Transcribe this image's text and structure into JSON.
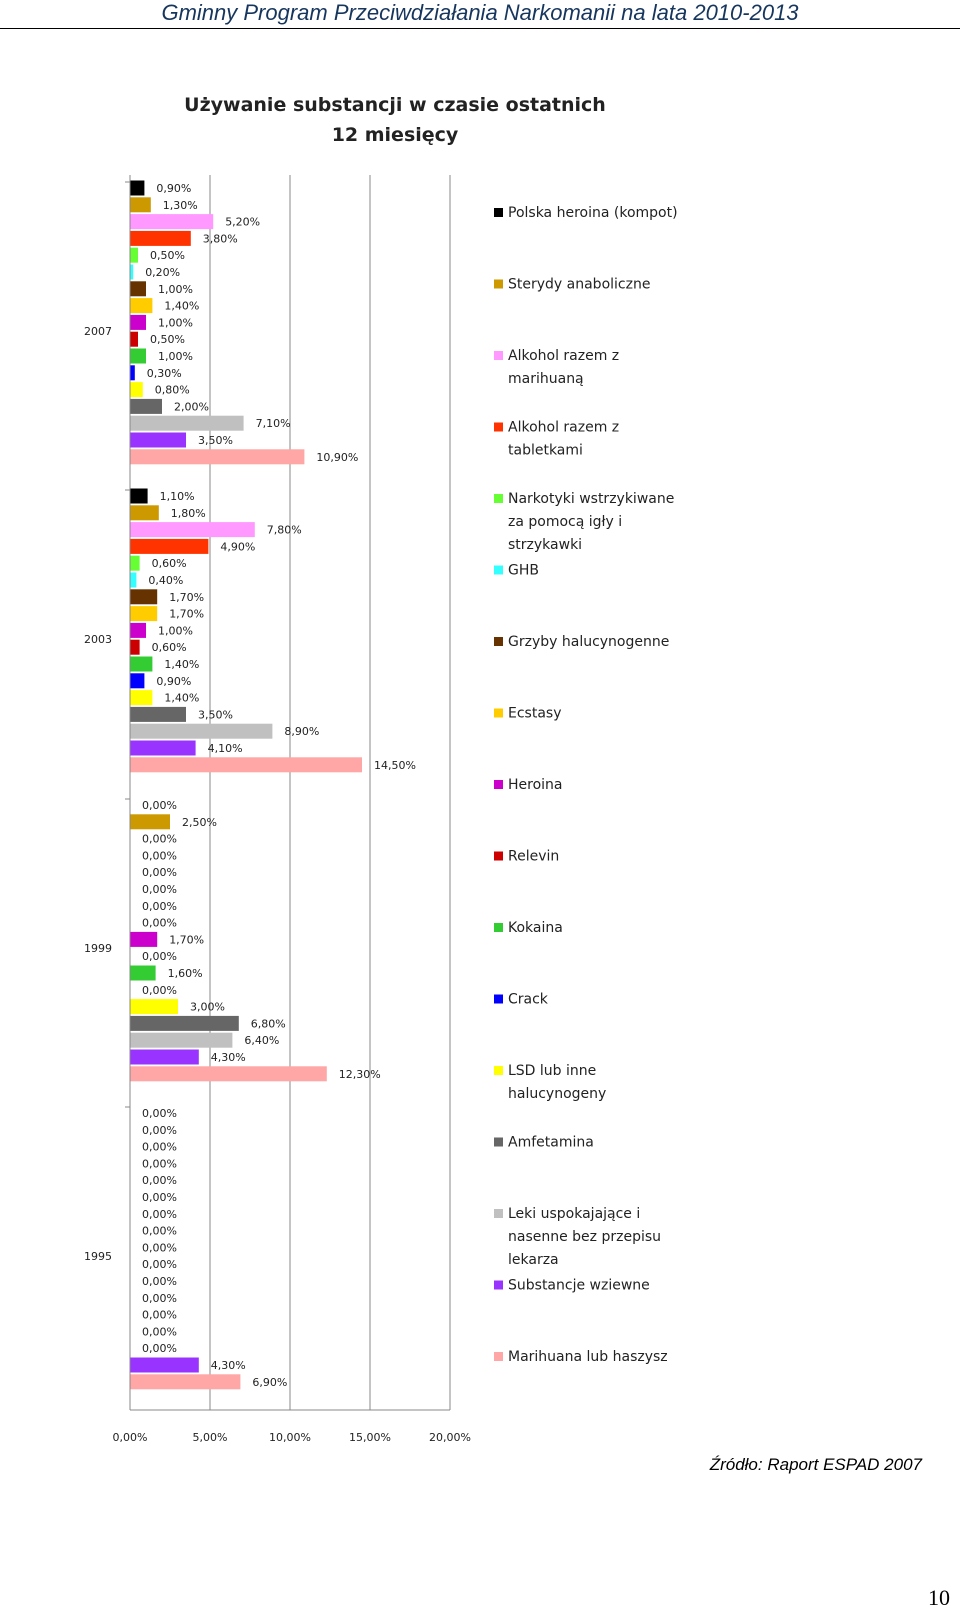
{
  "header": {
    "title": "Gminny Program Przeciwdziałania Narkomanii na lata 2010-2013"
  },
  "footer": {
    "source": "Źródło: Raport ESPAD 2007",
    "page_number": "10"
  },
  "chart_data": {
    "type": "bar",
    "orientation": "horizontal",
    "title": "Używanie substancji w czasie ostatnich 12 miesięcy",
    "title_lines": [
      "Używanie substancji w czasie ostatnich",
      "12 miesięcy"
    ],
    "xlim": [
      0,
      20
    ],
    "x_ticks": [
      "0,00%",
      "5,00%",
      "10,00%",
      "15,00%",
      "20,00%"
    ],
    "groups": [
      "2007",
      "2003",
      "1999",
      "1995"
    ],
    "series": [
      {
        "name": "Polska heroina (kompot)",
        "color": "#000000",
        "values": [
          0.9,
          1.1,
          0.0,
          0.0
        ]
      },
      {
        "name": "Sterydy anaboliczne",
        "color": "#cc9900",
        "values": [
          1.3,
          1.8,
          2.5,
          0.0
        ]
      },
      {
        "name": "Alkohol razem z marihuaną",
        "color": "#ff99ff",
        "values": [
          5.2,
          7.8,
          0.0,
          0.0
        ]
      },
      {
        "name": "Alkohol razem z tabletkami",
        "color": "#ff3300",
        "values": [
          3.8,
          4.9,
          0.0,
          0.0
        ]
      },
      {
        "name": "Narkotyki wstrzykiwane za pomocą igły i strzykawki",
        "color": "#66ff33",
        "values": [
          0.5,
          0.6,
          0.0,
          0.0
        ]
      },
      {
        "name": "GHB",
        "color": "#33ffff",
        "values": [
          0.2,
          0.4,
          0.0,
          0.0
        ]
      },
      {
        "name": "Grzyby halucynogenne",
        "color": "#663300",
        "values": [
          1.0,
          1.7,
          0.0,
          0.0
        ]
      },
      {
        "name": "Ecstasy",
        "color": "#ffcc00",
        "values": [
          1.4,
          1.7,
          0.0,
          0.0
        ]
      },
      {
        "name": "Heroina",
        "color": "#cc00cc",
        "values": [
          1.0,
          1.0,
          1.7,
          0.0
        ]
      },
      {
        "name": "Relevin",
        "color": "#cc0000",
        "values": [
          0.5,
          0.6,
          0.0,
          0.0
        ]
      },
      {
        "name": "Kokaina",
        "color": "#33cc33",
        "values": [
          1.0,
          1.4,
          1.6,
          0.0
        ]
      },
      {
        "name": "Crack",
        "color": "#0000ff",
        "values": [
          0.3,
          0.9,
          0.0,
          0.0
        ]
      },
      {
        "name": "LSD lub inne halucynogeny",
        "color": "#ffff00",
        "values": [
          0.8,
          1.4,
          3.0,
          0.0
        ]
      },
      {
        "name": "Amfetamina",
        "color": "#666666",
        "values": [
          2.0,
          3.5,
          6.8,
          0.0
        ]
      },
      {
        "name": "Leki uspokajające i nasenne bez przepisu lekarza",
        "color": "#c0c0c0",
        "values": [
          7.1,
          8.9,
          6.4,
          0.0
        ]
      },
      {
        "name": "Substancje wziewne",
        "color": "#9933ff",
        "values": [
          3.5,
          4.1,
          4.3,
          4.3
        ]
      },
      {
        "name": "Marihuana lub haszysz",
        "color": "#ffa6a6",
        "values": [
          10.9,
          14.5,
          12.3,
          6.9
        ]
      }
    ],
    "data_labels": [
      [
        "0,90%",
        "1,30%",
        "5,20%",
        "3,80%",
        "0,50%",
        "0,20%",
        "1,00%",
        "1,40%",
        "1,00%",
        "0,50%",
        "1,00%",
        "0,30%",
        "0,80%",
        "2,00%",
        "7,10%",
        "3,50%",
        "10,90%"
      ],
      [
        "1,10%",
        "1,80%",
        "7,80%",
        "4,90%",
        "0,60%",
        "0,40%",
        "1,70%",
        "1,70%",
        "1,00%",
        "0,60%",
        "1,40%",
        "0,90%",
        "1,40%",
        "3,50%",
        "8,90%",
        "4,10%",
        "14,50%"
      ],
      [
        "0,00%",
        "2,50%",
        "0,00%",
        "0,00%",
        "0,00%",
        "0,00%",
        "0,00%",
        "0,00%",
        "1,70%",
        "0,00%",
        "1,60%",
        "0,00%",
        "3,00%",
        "6,80%",
        "6,40%",
        "4,30%",
        "12,30%"
      ],
      [
        "0,00%",
        "0,00%",
        "0,00%",
        "0,00%",
        "0,00%",
        "0,00%",
        "0,00%",
        "0,00%",
        "0,00%",
        "0,00%",
        "0,00%",
        "0,00%",
        "0,00%",
        "0,00%",
        "0,00%",
        "4,30%",
        "6,90%"
      ]
    ],
    "legend": [
      [
        "Polska heroina (kompot)"
      ],
      [
        "Sterydy anaboliczne"
      ],
      [
        "Alkohol razem z",
        "marihuaną"
      ],
      [
        "Alkohol razem z",
        "tabletkami"
      ],
      [
        "Narkotyki wstrzykiwane",
        "za pomocą igły i",
        "strzykawki"
      ],
      [
        "GHB"
      ],
      [
        "Grzyby halucynogenne"
      ],
      [
        "Ecstasy"
      ],
      [
        "Heroina"
      ],
      [
        "Relevin"
      ],
      [
        "Kokaina"
      ],
      [
        "Crack"
      ],
      [
        "LSD lub inne",
        "halucynogeny"
      ],
      [
        "Amfetamina"
      ],
      [
        "Leki uspokajające i",
        "nasenne bez przepisu",
        "lekarza"
      ],
      [
        "Substancje wziewne"
      ],
      [
        "Marihuana lub haszysz"
      ]
    ],
    "grid": true,
    "legend_position": "right"
  }
}
